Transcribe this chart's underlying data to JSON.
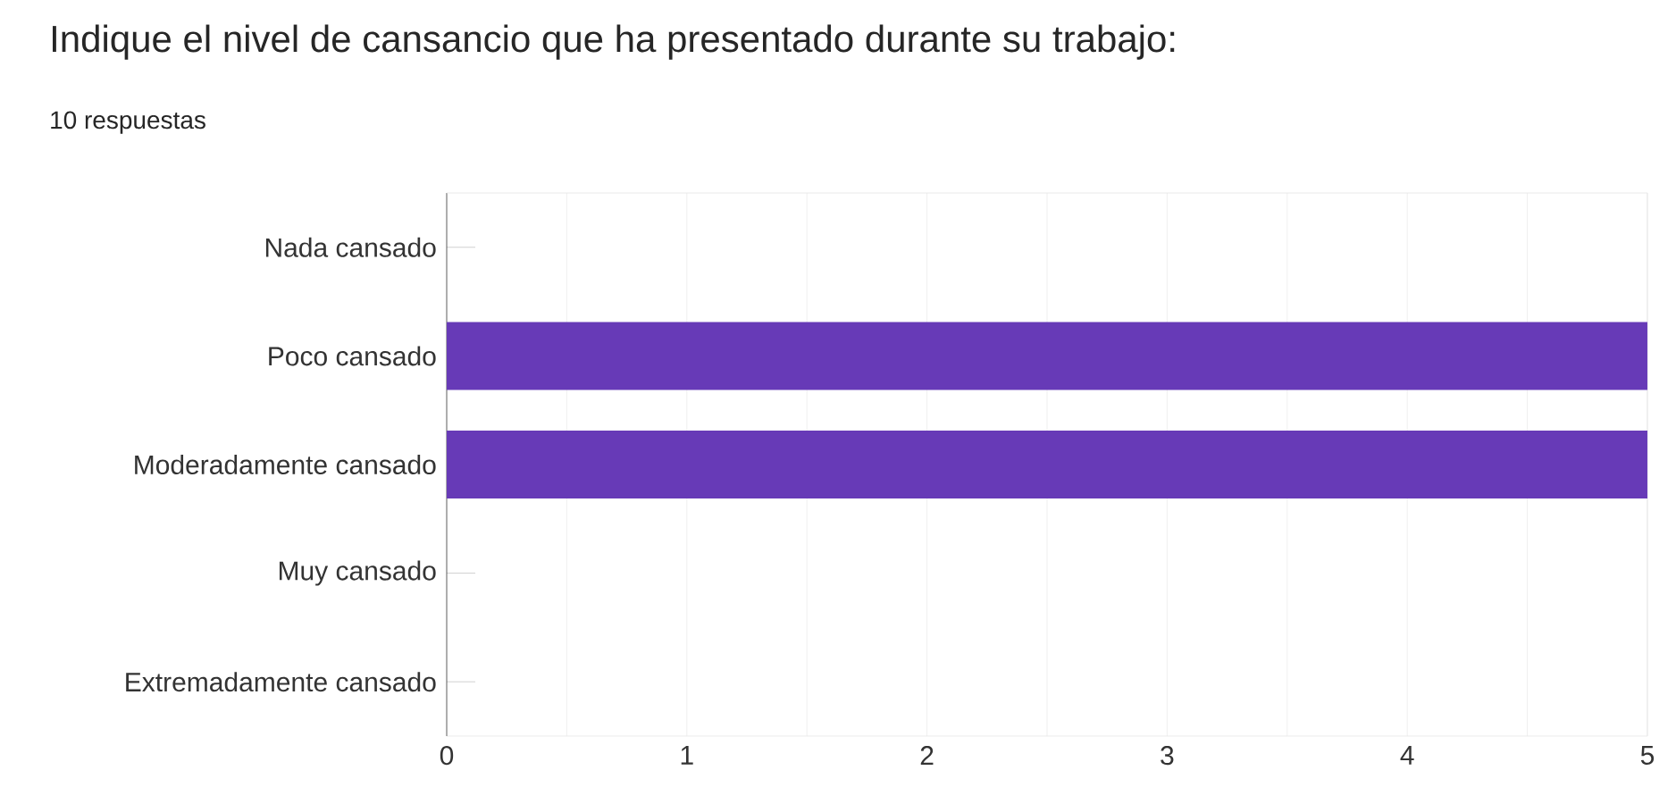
{
  "chart_data": {
    "type": "bar",
    "orientation": "horizontal",
    "title": "Indique el nivel de cansancio que ha presentado durante su trabajo:",
    "subtitle": "10 respuestas",
    "categories": [
      "Nada cansado",
      "Poco cansado",
      "Moderadamente cansado",
      "Muy cansado",
      "Extremadamente cansado"
    ],
    "values": [
      0,
      5,
      5,
      0,
      0
    ],
    "color": "#673ab7",
    "xlim": [
      0,
      5
    ],
    "xticks": [
      0,
      {
        "value": 0.5,
        "label": null
      },
      1,
      {
        "value": 1.5,
        "label": null
      },
      2,
      {
        "value": 2.5,
        "label": null
      },
      3,
      {
        "value": 3.5,
        "label": null
      },
      4,
      {
        "value": 4.5,
        "label": null
      },
      5
    ],
    "grid": "x"
  }
}
